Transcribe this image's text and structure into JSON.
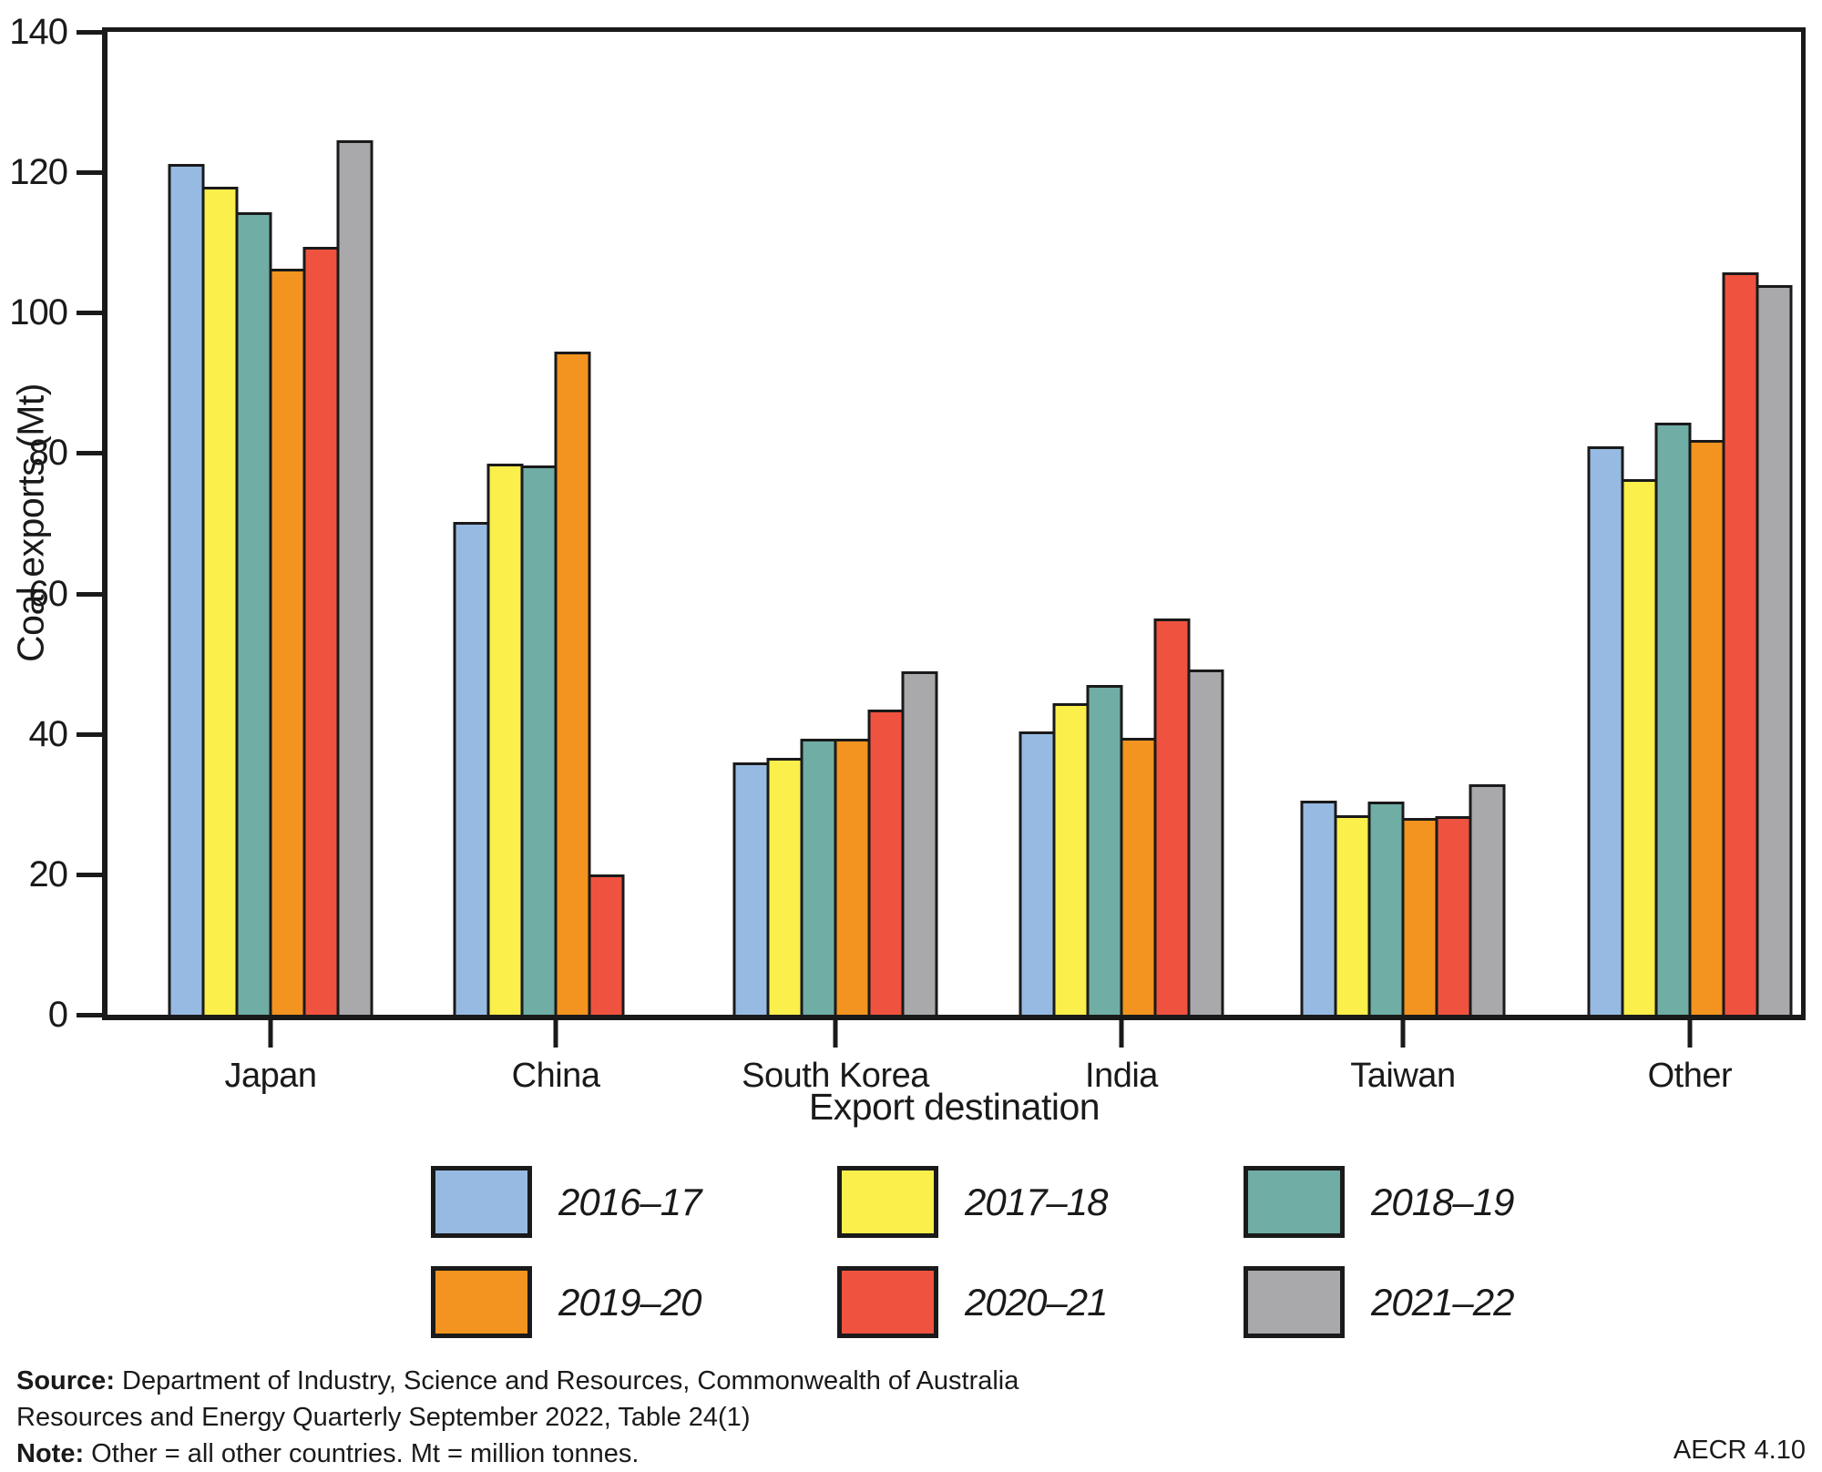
{
  "chart_data": {
    "type": "bar",
    "title": "",
    "xlabel": "Export destination",
    "ylabel": "Coal exports (Mt)",
    "ylim": [
      0,
      140
    ],
    "yticks": [
      0,
      20,
      40,
      60,
      80,
      100,
      120,
      140
    ],
    "grid": false,
    "legend_position": "bottom",
    "bar_border_color": "#1A1A1A",
    "categories": [
      "Japan",
      "China",
      "South Korea",
      "India",
      "Taiwan",
      "Other"
    ],
    "series": [
      {
        "name": "2016–17",
        "color": "#97BAE2",
        "values": [
          121.2,
          70.2,
          36.0,
          40.4,
          30.5,
          80.9
        ]
      },
      {
        "name": "2017–18",
        "color": "#FAEF4B",
        "values": [
          117.9,
          78.5,
          36.6,
          44.4,
          28.4,
          76.3
        ]
      },
      {
        "name": "2018–19",
        "color": "#6FADA5",
        "values": [
          114.3,
          78.2,
          39.3,
          47.0,
          30.3,
          84.4
        ]
      },
      {
        "name": "2019–20",
        "color": "#F2941F",
        "values": [
          106.3,
          94.4,
          39.3,
          39.5,
          28.0,
          81.9
        ]
      },
      {
        "name": "2020–21",
        "color": "#EF5340",
        "values": [
          109.4,
          20.0,
          43.5,
          56.5,
          28.3,
          105.8
        ]
      },
      {
        "name": "2021–22",
        "color": "#A9A9AC",
        "values": [
          124.5,
          0,
          48.9,
          49.2,
          32.8,
          103.9
        ]
      }
    ]
  },
  "footer": {
    "source_label": "Source:",
    "source_text": " Department of Industry, Science and Resources, Commonwealth of Australia",
    "source_line2": "Resources and Energy Quarterly September 2022, Table 24(1)",
    "note_label": "Note:",
    "note_text": " Other = all other countries. Mt = million tonnes.",
    "code": "AECR 4.10"
  }
}
